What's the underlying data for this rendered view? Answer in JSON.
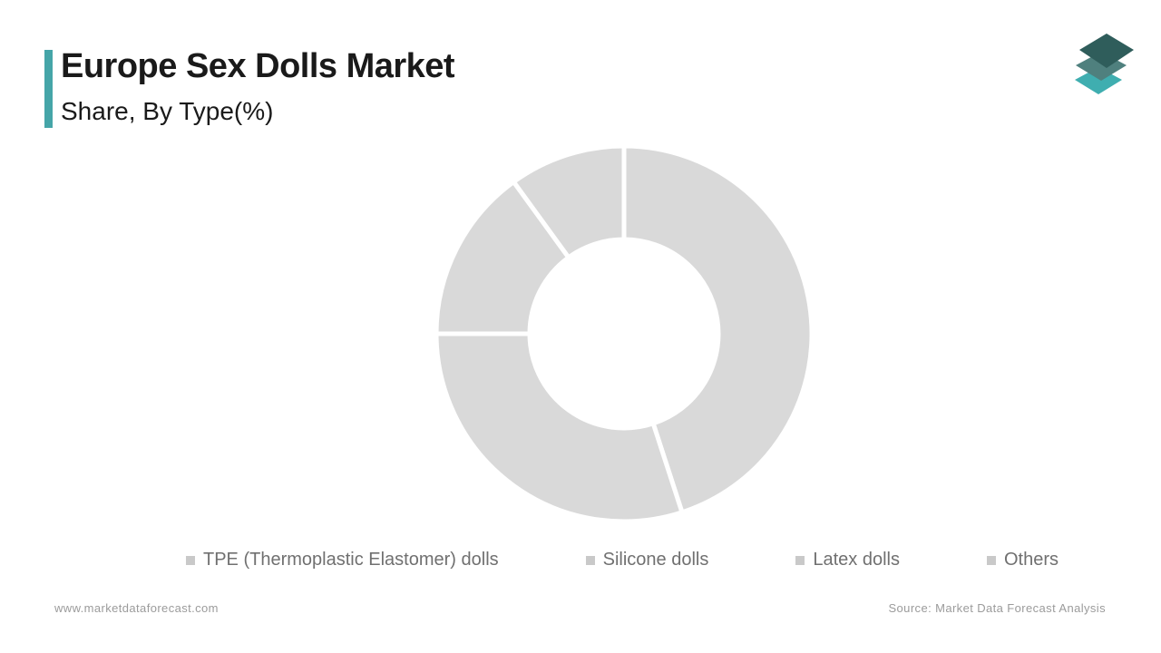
{
  "header": {
    "title": "Europe Sex Dolls Market",
    "subtitle": "Share, By Type(%)",
    "accent_color": "#45A5A8"
  },
  "logo": {
    "label": "Market Data Forecast logo",
    "layer_colors": [
      "#3FAEB0",
      "#4F807E",
      "#2F5D5B"
    ]
  },
  "chart_data": {
    "type": "donut",
    "title": "Europe Sex Dolls Market Share, By Type(%)",
    "categories": [
      "TPE (Thermoplastic Elastomer) dolls",
      "Silicone dolls",
      "Latex dolls",
      "Others"
    ],
    "values": [
      45,
      30,
      15,
      10
    ],
    "unit": "%",
    "start_angle_deg": 0,
    "direction": "clockwise",
    "segment_color": "#D9D9D9",
    "gap_color": "#FFFFFF",
    "inner_radius_ratio": 0.5,
    "legend_position": "bottom",
    "legend_marker_color": "#C9C9C9",
    "legend_text_color": "#707070"
  },
  "footer": {
    "website": "www.marketdataforecast.com",
    "source": "Source: Market Data Forecast Analysis"
  }
}
